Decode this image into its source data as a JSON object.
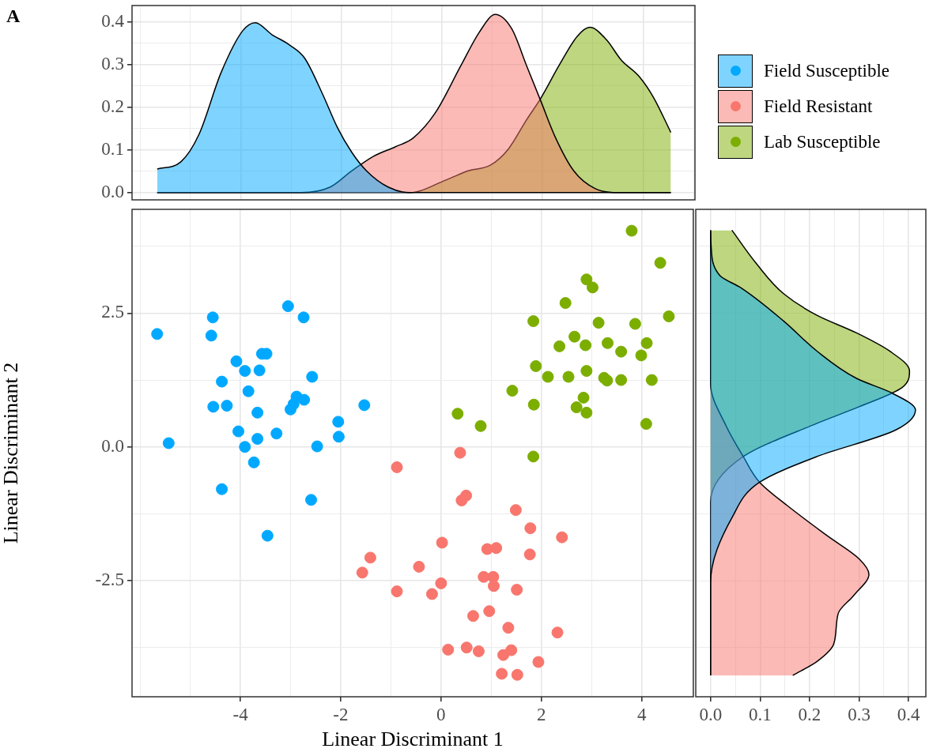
{
  "chart_data": [
    {
      "type": "area",
      "annotations": [
        "A"
      ],
      "xlim": [
        -6.16,
        5.03
      ],
      "xticks": [
        {
          "value": -6,
          "label": null
        },
        {
          "value": -5,
          "label": null
        },
        -4,
        {
          "value": -3,
          "label": null
        },
        -2,
        {
          "value": -1,
          "label": null
        },
        0,
        {
          "value": 1,
          "label": null
        },
        2,
        {
          "value": 3,
          "label": null
        },
        4,
        {
          "value": 5,
          "label": null
        }
      ],
      "ylim": [
        -0.017,
        0.438
      ],
      "yticks": [
        {
          "value": 0,
          "label": "0.0"
        },
        {
          "value": 0.05,
          "label": null
        },
        0.1,
        {
          "value": 0.15,
          "label": null
        },
        0.2,
        {
          "value": 0.25,
          "label": null
        },
        0.3,
        {
          "value": 0.35,
          "label": null
        },
        0.4
      ],
      "tick_labels": "y",
      "grid": true,
      "series": [
        {
          "color": "#00a9ff",
          "x": [
            -5.66,
            -5.19,
            -4.83,
            -4.39,
            -3.96,
            -3.71,
            -3.38,
            -3.02,
            -2.73,
            -2.37,
            -2.08,
            -1.79,
            -1.5,
            -1.07,
            -0.64,
            4.55
          ],
          "values": [
            0.055,
            0.072,
            0.136,
            0.281,
            0.379,
            0.398,
            0.37,
            0.345,
            0.315,
            0.23,
            0.153,
            0.094,
            0.051,
            0.013,
            0,
            0
          ]
        },
        {
          "color": "#f8766d",
          "x": [
            -5.66,
            -2.8,
            -2.22,
            -1.79,
            -1.36,
            -0.93,
            -0.57,
            -0.13,
            0.38,
            0.74,
            1.06,
            1.39,
            1.68,
            1.97,
            2.26,
            2.62,
            3.05,
            3.49,
            4.55
          ],
          "values": [
            0,
            0,
            0.013,
            0.051,
            0.085,
            0.107,
            0.128,
            0.187,
            0.298,
            0.375,
            0.417,
            0.383,
            0.298,
            0.213,
            0.128,
            0.051,
            0.009,
            0,
            0
          ]
        },
        {
          "color": "#7cae00",
          "x": [
            -5.66,
            -0.64,
            0.09,
            0.52,
            0.96,
            1.32,
            1.68,
            1.97,
            2.33,
            2.69,
            2.94,
            3.27,
            3.56,
            3.92,
            4.21,
            4.55
          ],
          "values": [
            0,
            0,
            0.03,
            0.051,
            0.064,
            0.102,
            0.17,
            0.222,
            0.298,
            0.366,
            0.387,
            0.358,
            0.311,
            0.272,
            0.222,
            0.141
          ]
        }
      ]
    },
    {
      "type": "scatter",
      "xlabel": "Linear Discriminant 1",
      "ylabel": "Linear Discriminant 2",
      "xlim": [
        -6.16,
        5.03
      ],
      "xticks": [
        {
          "value": -6,
          "label": null
        },
        {
          "value": -5,
          "label": null
        },
        -4,
        {
          "value": -3,
          "label": null
        },
        -2,
        {
          "value": -1,
          "label": null
        },
        0,
        {
          "value": 1,
          "label": null
        },
        2,
        {
          "value": 3,
          "label": null
        },
        4,
        {
          "value": 5,
          "label": null
        }
      ],
      "ylim": [
        -4.67,
        4.44
      ],
      "yticks": [
        {
          "value": -3.75,
          "label": null
        },
        -2.5,
        {
          "value": -1.25,
          "label": null
        },
        {
          "value": 0,
          "label": "0.0"
        },
        {
          "value": 1.25,
          "label": null
        },
        2.5,
        {
          "value": 3.75,
          "label": null
        }
      ],
      "grid": true,
      "legend": "top right",
      "marker": "circle",
      "series": [
        {
          "name": "Field Susceptible",
          "color": "#00a9ff",
          "x": [
            -5.66,
            -4.55,
            -4.58,
            -3.05,
            -2.74,
            -3.57,
            -3.48,
            -4.08,
            -3.91,
            -3.62,
            -2.57,
            -4.37,
            -3.84,
            -2.88,
            -2.73,
            -2.94,
            -3.0,
            -4.54,
            -4.27,
            -3.66,
            -1.53,
            -2.05,
            -2.04,
            -4.04,
            -3.28,
            -3.66,
            -5.43,
            -3.91,
            -2.47,
            -3.73,
            -4.37,
            -2.59,
            -3.46
          ],
          "values": [
            2.11,
            2.42,
            2.08,
            2.63,
            2.42,
            1.74,
            1.74,
            1.6,
            1.42,
            1.43,
            1.31,
            1.22,
            1.04,
            0.94,
            0.88,
            0.8,
            0.7,
            0.75,
            0.77,
            0.64,
            0.78,
            0.47,
            0.19,
            0.29,
            0.25,
            0.15,
            0.07,
            0.0,
            0.01,
            -0.29,
            -0.79,
            -0.99,
            -1.66
          ]
        },
        {
          "name": "Field Resistant",
          "color": "#f8766d",
          "x": [
            0.38,
            -0.88,
            0.5,
            0.41,
            1.49,
            1.78,
            2.41,
            0.02,
            0.92,
            1.1,
            1.77,
            -1.41,
            -1.57,
            -0.44,
            0.85,
            1.04,
            1.05,
            -0.88,
            -0.18,
            0.0,
            1.51,
            0.96,
            0.64,
            1.34,
            2.32,
            0.14,
            0.51,
            0.75,
            1.24,
            1.4,
            1.94,
            1.21,
            1.52
          ],
          "values": [
            -0.11,
            -0.38,
            -0.91,
            -1.0,
            -1.18,
            -1.52,
            -1.69,
            -1.79,
            -1.91,
            -1.89,
            -2.01,
            -2.07,
            -2.35,
            -2.24,
            -2.43,
            -2.43,
            -2.6,
            -2.7,
            -2.75,
            -2.55,
            -2.67,
            -3.07,
            -3.16,
            -3.38,
            -3.47,
            -3.79,
            -3.75,
            -3.82,
            -3.89,
            -3.8,
            -4.02,
            -4.24,
            -4.26
          ]
        },
        {
          "name": "Lab Susceptible",
          "color": "#7cae00",
          "x": [
            3.8,
            4.37,
            2.9,
            3.02,
            2.48,
            1.84,
            3.14,
            3.87,
            4.54,
            2.66,
            2.36,
            2.88,
            3.32,
            4.1,
            3.59,
            3.99,
            1.89,
            2.13,
            2.54,
            2.9,
            3.25,
            3.31,
            3.59,
            4.2,
            1.42,
            2.84,
            1.85,
            2.7,
            2.9,
            4.09,
            0.79,
            0.33,
            1.84
          ],
          "values": [
            4.04,
            3.44,
            3.13,
            2.98,
            2.69,
            2.35,
            2.32,
            2.3,
            2.44,
            2.06,
            1.88,
            1.9,
            1.94,
            1.94,
            1.78,
            1.71,
            1.51,
            1.31,
            1.31,
            1.42,
            1.29,
            1.24,
            1.25,
            1.25,
            1.05,
            0.92,
            0.79,
            0.74,
            0.64,
            0.43,
            0.39,
            0.62,
            -0.18
          ]
        }
      ]
    },
    {
      "type": "area",
      "orientation": "horizontal",
      "xlim": [
        -0.03,
        0.435
      ],
      "xticks": [
        {
          "value": 0,
          "label": "0.0"
        },
        {
          "value": 0.05,
          "label": null
        },
        0.1,
        {
          "value": 0.15,
          "label": null
        },
        0.2,
        {
          "value": 0.25,
          "label": null
        },
        0.3,
        {
          "value": 0.35,
          "label": null
        },
        0.4
      ],
      "ylim": [
        -4.67,
        4.44
      ],
      "yticks": [
        {
          "value": -3.75,
          "label": null
        },
        {
          "value": -2.5,
          "label": null
        },
        {
          "value": -1.25,
          "label": null
        },
        {
          "value": 0,
          "label": null
        },
        {
          "value": 1.25,
          "label": null
        },
        {
          "value": 2.5,
          "label": null
        },
        {
          "value": 3.75,
          "label": null
        }
      ],
      "tick_labels": "x",
      "grid": true,
      "series": [
        {
          "color": "#00a9ff",
          "x": [
            4.05,
            3.76,
            3.2,
            2.97,
            2.35,
            1.79,
            1.28,
            1.0,
            0.69,
            0.32,
            -0.18,
            -0.66,
            -1.31,
            -2.54,
            -4.27
          ],
          "values": [
            0,
            0.001,
            0.019,
            0.062,
            0.148,
            0.215,
            0.295,
            0.368,
            0.414,
            0.375,
            0.215,
            0.099,
            0.044,
            0,
            0
          ]
        },
        {
          "color": "#f8766d",
          "x": [
            4.05,
            1.17,
            0.38,
            -0.18,
            -0.66,
            -1.09,
            -1.65,
            -2.1,
            -2.38,
            -2.78,
            -3.11,
            -3.68,
            -4.01,
            -4.27
          ],
          "values": [
            0,
            0,
            0.032,
            0.066,
            0.099,
            0.154,
            0.234,
            0.301,
            0.32,
            0.289,
            0.258,
            0.249,
            0.215,
            0.166
          ]
        },
        {
          "color": "#7cae00",
          "x": [
            4.05,
            3.42,
            2.86,
            2.46,
            2.13,
            1.79,
            1.42,
            1.11,
            0.75,
            0.44,
            -0.18,
            -1.03,
            -4.27
          ],
          "values": [
            0.043,
            0.093,
            0.148,
            0.215,
            0.295,
            0.362,
            0.402,
            0.387,
            0.3,
            0.215,
            0.066,
            0,
            0
          ]
        }
      ]
    }
  ]
}
